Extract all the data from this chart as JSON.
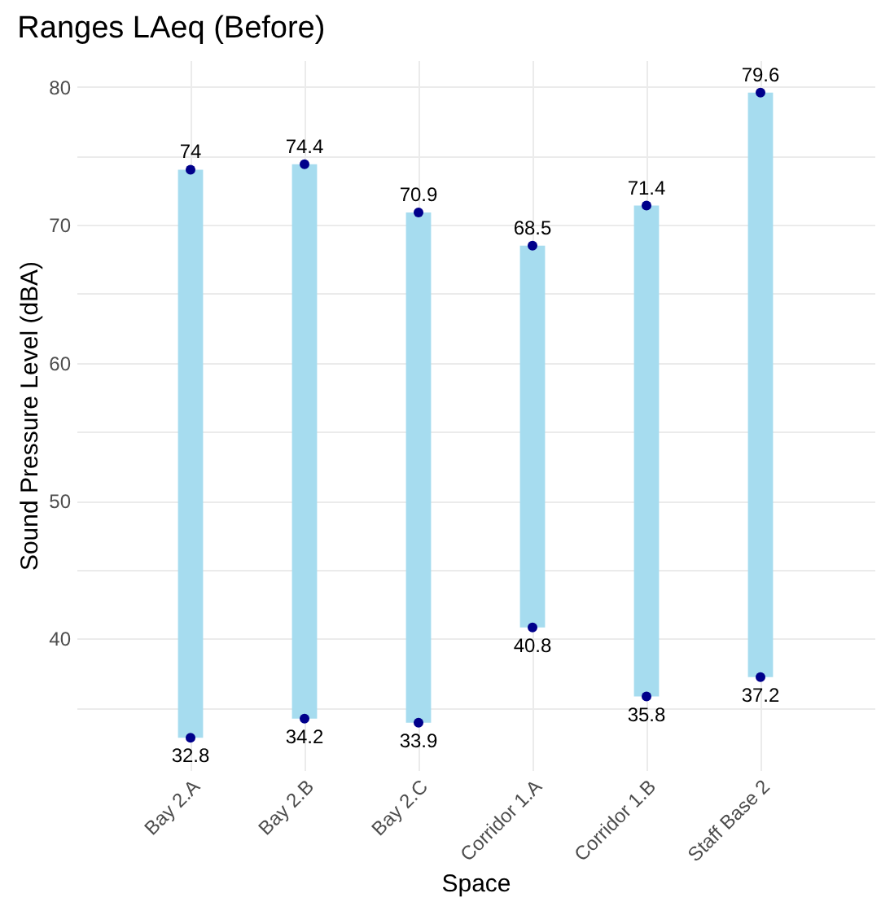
{
  "chart_data": {
    "type": "bar",
    "title": "Ranges LAeq (Before)",
    "xlabel": "Space",
    "ylabel": "Sound Pressure Level (dBA)",
    "categories": [
      "Bay 2.A",
      "Bay 2.B",
      "Bay 2.C",
      "Corridor 1.A",
      "Corridor 1.B",
      "Staff Base 2"
    ],
    "ylim": [
      30.46,
      81.94
    ],
    "yticks": [
      {
        "value": 35,
        "label": null
      },
      40,
      {
        "value": 45,
        "label": null
      },
      50,
      {
        "value": 55,
        "label": null
      },
      60,
      {
        "value": 65,
        "label": null
      },
      70,
      {
        "value": 75,
        "label": null
      },
      80
    ],
    "grid": true,
    "series": [
      {
        "color": "#a6dcef",
        "base": [
          32.8,
          34.2,
          33.9,
          40.8,
          35.8,
          37.2
        ],
        "values": [
          41.2,
          40.2,
          37,
          27.7,
          35.6,
          42.4
        ]
      },
      {
        "type": "scatter",
        "color": "#00008b",
        "marker": "circle",
        "values": [
          32.8,
          34.2,
          33.9,
          40.8,
          35.8,
          37.2
        ],
        "value_labels": [
          "32.8",
          "34.2",
          "33.9",
          "40.8",
          "35.8",
          "37.2"
        ]
      },
      {
        "type": "scatter",
        "color": "#00008b",
        "marker": "circle",
        "values": [
          74,
          74.4,
          70.9,
          68.5,
          71.4,
          79.6
        ],
        "value_labels": [
          "74",
          "74.4",
          "70.9",
          "68.5",
          "71.4",
          "79.6"
        ]
      }
    ]
  }
}
